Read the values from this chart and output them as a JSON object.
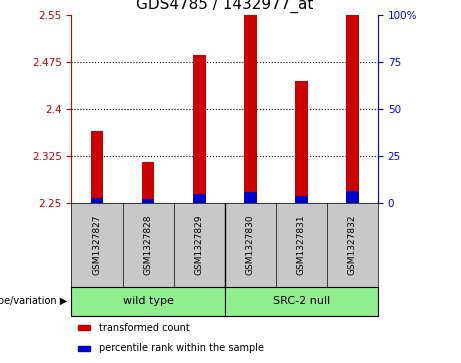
{
  "title": "GDS4785 / 1432977_at",
  "samples": [
    "GSM1327827",
    "GSM1327828",
    "GSM1327829",
    "GSM1327830",
    "GSM1327831",
    "GSM1327832"
  ],
  "red_values": [
    2.365,
    2.315,
    2.485,
    2.555,
    2.445,
    2.553
  ],
  "blue_values": [
    2.258,
    2.257,
    2.265,
    2.268,
    2.262,
    2.27
  ],
  "baseline": 2.25,
  "ylim_left": [
    2.25,
    2.55
  ],
  "ylim_right": [
    0,
    100
  ],
  "yticks_left": [
    2.25,
    2.325,
    2.4,
    2.475,
    2.55
  ],
  "ytick_labels_left": [
    "2.25",
    "2.325",
    "2.4",
    "2.475",
    "2.55"
  ],
  "yticks_right": [
    0,
    25,
    50,
    75,
    100
  ],
  "ytick_labels_right": [
    "0",
    "25",
    "50",
    "75",
    "100%"
  ],
  "grid_lines": [
    2.325,
    2.4,
    2.475
  ],
  "groups": [
    {
      "label": "wild type",
      "indices": [
        0,
        1,
        2
      ],
      "color": "#90EE90"
    },
    {
      "label": "SRC-2 null",
      "indices": [
        3,
        4,
        5
      ],
      "color": "#90EE90"
    }
  ],
  "group_label": "genotype/variation",
  "legend_items": [
    {
      "color": "#CC0000",
      "label": "transformed count"
    },
    {
      "color": "#0000CC",
      "label": "percentile rank within the sample"
    }
  ],
  "bar_width": 0.25,
  "red_color": "#CC0000",
  "blue_color": "#0000CC",
  "sample_bg_color": "#C8C8C8",
  "title_fontsize": 11,
  "tick_fontsize": 7.5,
  "sample_fontsize": 6.5,
  "group_fontsize": 8,
  "legend_fontsize": 7
}
